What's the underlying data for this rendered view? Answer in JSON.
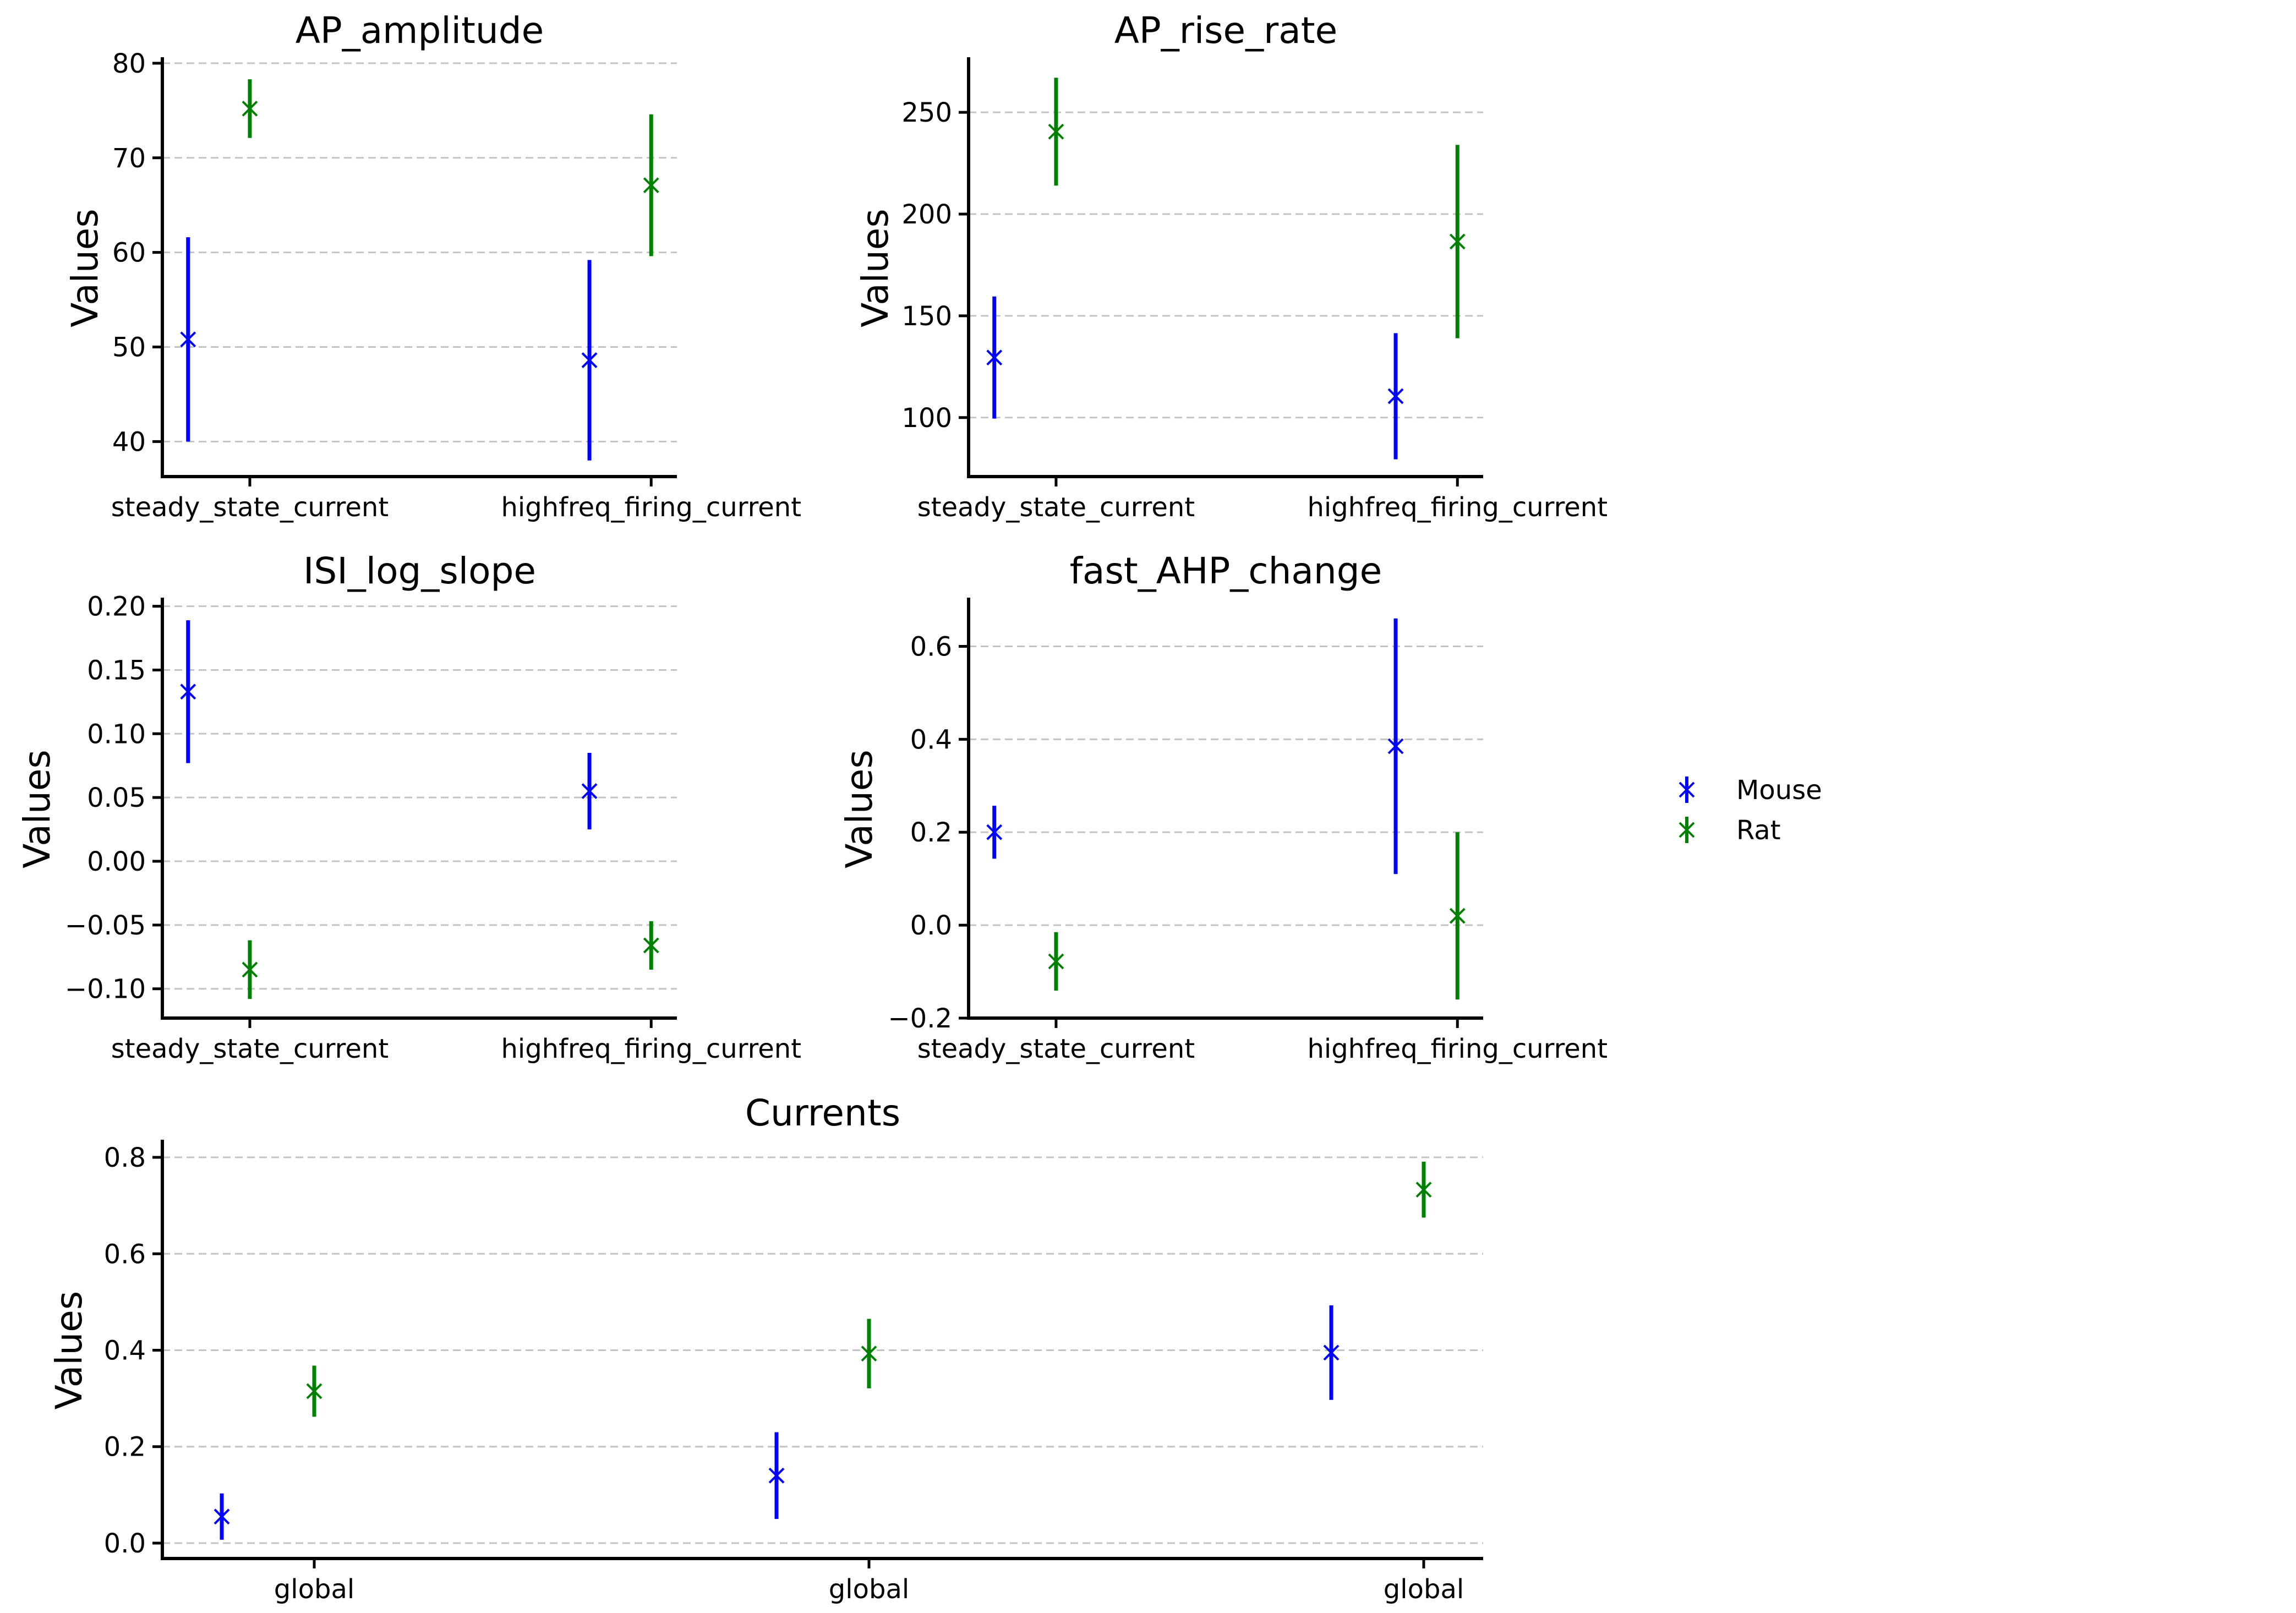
{
  "chart_data": [
    {
      "type": "errorbar",
      "title": "AP_amplitude",
      "xlabel": "",
      "ylabel": "Values",
      "categories": [
        "steady_state_current",
        "highfreq_firing_current"
      ],
      "ylim": [
        36.3,
        80.4
      ],
      "yticks": [
        40,
        50,
        60,
        70,
        80
      ],
      "ytick_labels": [
        "40",
        "50",
        "60",
        "70",
        "80"
      ],
      "grid": true,
      "series": [
        {
          "name": "Mouse",
          "color": "#0000ff",
          "values": [
            50.8,
            48.6
          ],
          "errors": [
            10.8,
            10.6
          ]
        },
        {
          "name": "Rat",
          "color": "#008000",
          "values": [
            75.2,
            67.1
          ],
          "errors": [
            3.1,
            7.5
          ]
        }
      ]
    },
    {
      "type": "errorbar",
      "title": "AP_rise_rate",
      "xlabel": "",
      "ylabel": "Values",
      "categories": [
        "steady_state_current",
        "highfreq_firing_current"
      ],
      "ylim": [
        71,
        276
      ],
      "yticks": [
        100,
        150,
        200,
        250
      ],
      "ytick_labels": [
        "100",
        "150",
        "200",
        "250"
      ],
      "grid": true,
      "series": [
        {
          "name": "Mouse",
          "color": "#0000ff",
          "values": [
            129.5,
            110.5
          ],
          "errors": [
            30,
            31
          ]
        },
        {
          "name": "Rat",
          "color": "#008000",
          "values": [
            240.5,
            186.5
          ],
          "errors": [
            26.5,
            47.5
          ]
        }
      ]
    },
    {
      "type": "errorbar",
      "title": "ISI_log_slope",
      "xlabel": "",
      "ylabel": "Values",
      "categories": [
        "steady_state_current",
        "highfreq_firing_current"
      ],
      "ylim": [
        -0.123,
        0.205
      ],
      "yticks": [
        -0.1,
        -0.05,
        0.0,
        0.05,
        0.1,
        0.15,
        0.2
      ],
      "ytick_labels": [
        "−0.10",
        "−0.05",
        "0.00",
        "0.05",
        "0.10",
        "0.15",
        "0.20"
      ],
      "grid": true,
      "series": [
        {
          "name": "Mouse",
          "color": "#0000ff",
          "values": [
            0.133,
            0.055
          ],
          "errors": [
            0.056,
            0.03
          ]
        },
        {
          "name": "Rat",
          "color": "#008000",
          "values": [
            -0.085,
            -0.066
          ],
          "errors": [
            0.023,
            0.019
          ]
        }
      ]
    },
    {
      "type": "errorbar",
      "title": "fast_AHP_change",
      "xlabel": "",
      "ylabel": "Values",
      "categories": [
        "steady_state_current",
        "highfreq_firing_current"
      ],
      "ylim": [
        -0.2,
        0.7
      ],
      "yticks": [
        -0.2,
        0.0,
        0.2,
        0.4,
        0.6
      ],
      "ytick_labels": [
        "−0.2",
        "0.0",
        "0.2",
        "0.4",
        "0.6"
      ],
      "grid": true,
      "series": [
        {
          "name": "Mouse",
          "color": "#0000ff",
          "values": [
            0.2,
            0.385
          ],
          "errors": [
            0.057,
            0.275
          ]
        },
        {
          "name": "Rat",
          "color": "#008000",
          "values": [
            -0.078,
            0.02
          ],
          "errors": [
            0.063,
            0.18
          ]
        }
      ]
    },
    {
      "type": "errorbar",
      "title": "Currents",
      "xlabel": "",
      "ylabel": "Values",
      "categories": [
        "global",
        "global",
        "global"
      ],
      "ylim": [
        -0.032,
        0.832
      ],
      "yticks": [
        0.0,
        0.2,
        0.4,
        0.6,
        0.8
      ],
      "ytick_labels": [
        "0.0",
        "0.2",
        "0.4",
        "0.6",
        "0.8"
      ],
      "grid": true,
      "series": [
        {
          "name": "Mouse",
          "color": "#0000ff",
          "values": [
            0.055,
            0.14,
            0.395
          ],
          "errors": [
            0.048,
            0.09,
            0.098
          ]
        },
        {
          "name": "Rat",
          "color": "#008000",
          "values": [
            0.315,
            0.393,
            0.733
          ],
          "errors": [
            0.053,
            0.072,
            0.058
          ]
        }
      ]
    }
  ],
  "legend": {
    "placement": "center-right",
    "entries": [
      {
        "label": "Mouse",
        "color": "#0000ff"
      },
      {
        "label": "Rat",
        "color": "#008000"
      }
    ]
  }
}
